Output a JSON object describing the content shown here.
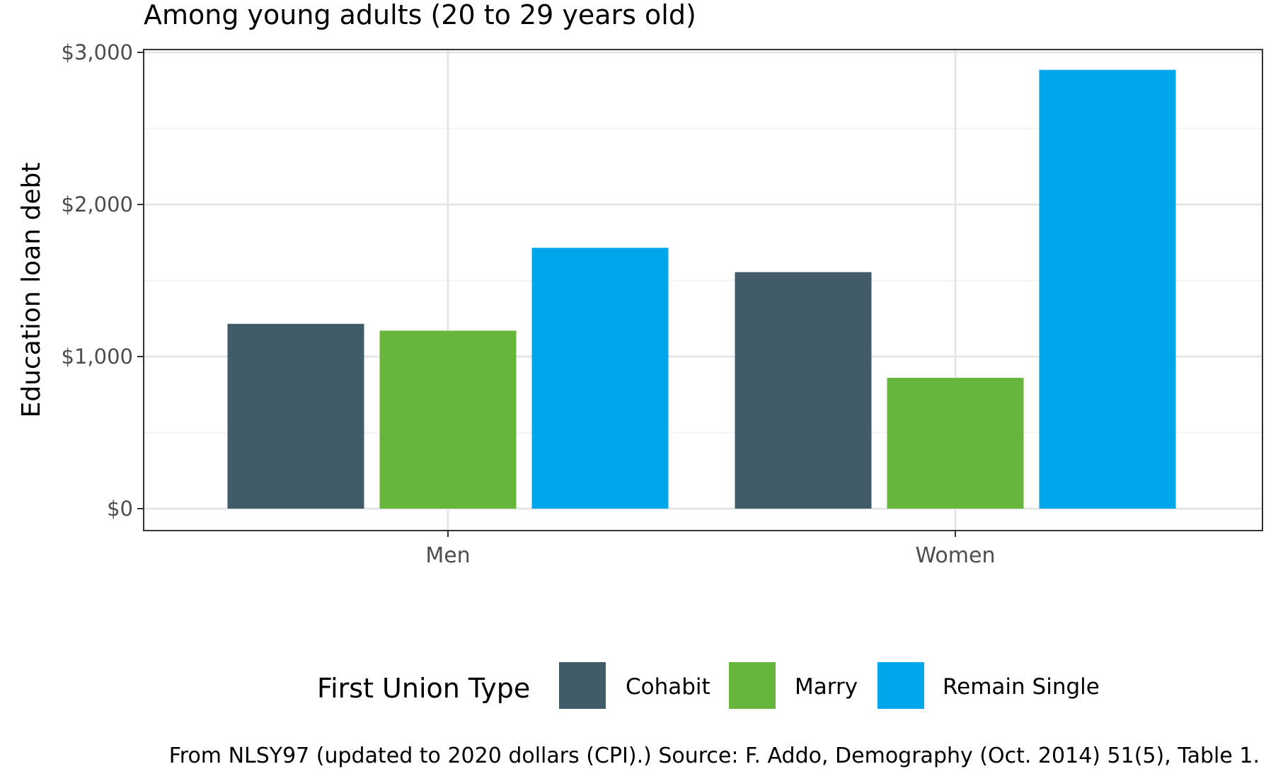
{
  "chart_data": {
    "type": "bar",
    "subtitle": "Among young adults (20 to 29 years old)",
    "ylabel": "Education loan debt",
    "xlabel": "",
    "ylim": [
      0,
      3150
    ],
    "yticks": [
      0,
      1000,
      2000,
      3000
    ],
    "ytick_labels": [
      "$0",
      "$1,000",
      "$2,000",
      "$3,000"
    ],
    "categories": [
      "Men",
      "Women"
    ],
    "series": [
      {
        "name": "Cohabit",
        "color": "#415c68",
        "values": [
          1215,
          1555
        ]
      },
      {
        "name": "Marry",
        "color": "#67b53a",
        "values": [
          1170,
          860
        ]
      },
      {
        "name": "Remain Single",
        "color": "#00a6ea",
        "values": [
          1715,
          2885
        ]
      }
    ],
    "grid": true,
    "legend": {
      "title": "First Union Type",
      "position": "bottom"
    },
    "caption": "From NLSY97 (updated to 2020 dollars (CPI).) Source: F. Addo, Demography (Oct. 2014) 51(5), Table 1."
  }
}
